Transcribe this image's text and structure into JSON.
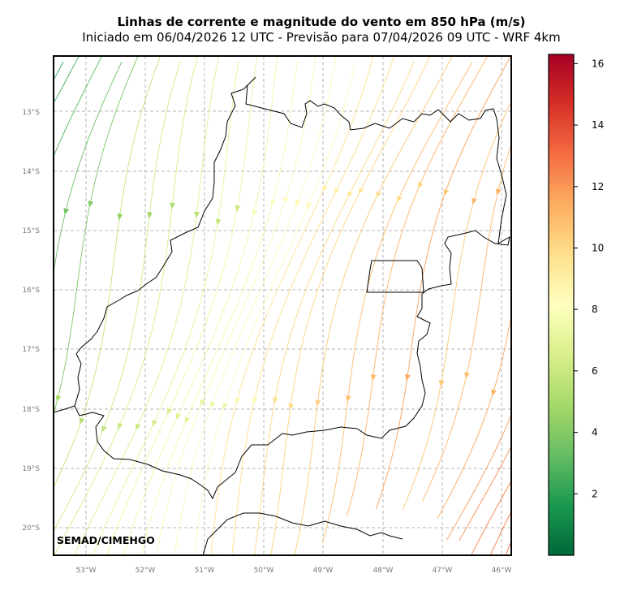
{
  "title": "Linhas de corrente e magnitude do vento em 850 hPa (m/s)",
  "subtitle": "Iniciado em 06/04/2026 12 UTC - Previsão para 07/04/2026 09 UTC - WRF 4km",
  "credit": "SEMAD/CIMEHGO",
  "map": {
    "lon_labels": [
      "53°W",
      "52°W",
      "51°W",
      "50°W",
      "49°W",
      "48°W",
      "47°W",
      "46°W"
    ],
    "lat_labels": [
      "13°S",
      "14°S",
      "15°S",
      "16°S",
      "17°S",
      "18°S",
      "19°S",
      "20°S"
    ],
    "grid": true,
    "gridline_style": "dashed"
  },
  "colorbar": {
    "min": 0,
    "max": 16.3,
    "tick_labels": [
      "2",
      "4",
      "6",
      "8",
      "10",
      "12",
      "14",
      "16"
    ],
    "colormap": "RdYlGn_r",
    "colors": [
      "#006837",
      "#1a9850",
      "#66bd63",
      "#a6d96a",
      "#d9ef8b",
      "#ffffbf",
      "#fee08b",
      "#fdae61",
      "#f46d43",
      "#d73027",
      "#a50026"
    ]
  }
}
